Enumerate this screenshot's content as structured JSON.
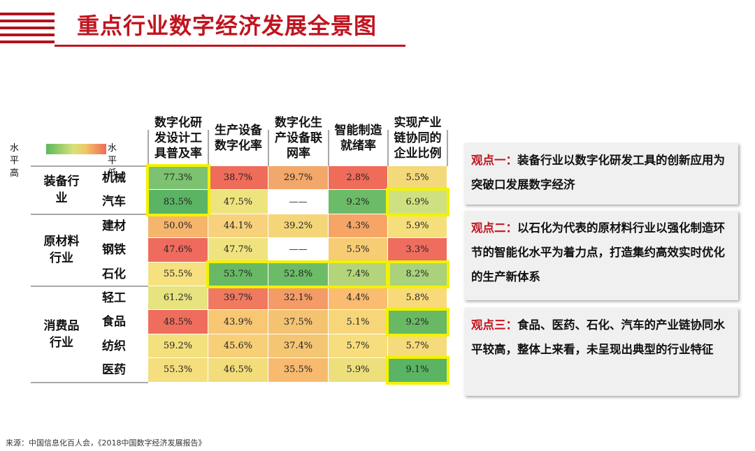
{
  "title": "重点行业数字经济发展全景图",
  "legend": {
    "high": "水平高",
    "low": "水平低",
    "colors": [
      "#5cb85c",
      "#d7e27a",
      "#f0c866",
      "#f06a5a"
    ]
  },
  "chart_data": {
    "type": "table",
    "columns": [
      [
        "数字化研",
        "发设计工",
        "具普及率"
      ],
      [
        "生产设备",
        "数字化率"
      ],
      [
        "数字化生",
        "产设备联",
        "网率"
      ],
      [
        "智能制造",
        "就绪率"
      ],
      [
        "实现产业",
        "链协同的",
        "企业比例"
      ]
    ],
    "groups": [
      {
        "label_lines": [
          "装备行",
          "业"
        ],
        "rows": [
          "机械",
          "汽车"
        ]
      },
      {
        "label_lines": [
          "原材料",
          "行业"
        ],
        "rows": [
          "建材",
          "钢铁",
          "石化"
        ]
      },
      {
        "label_lines": [
          "消费品",
          "行业"
        ],
        "rows": [
          "轻工",
          "食品",
          "纺织",
          "医药"
        ]
      }
    ],
    "rows": [
      {
        "name": "机械",
        "values": [
          "77.3%",
          "38.7%",
          "29.7%",
          "2.8%",
          "5.5%"
        ]
      },
      {
        "name": "汽车",
        "values": [
          "83.5%",
          "47.5%",
          "——",
          "9.2%",
          "6.9%"
        ]
      },
      {
        "name": "建材",
        "values": [
          "50.0%",
          "44.1%",
          "39.2%",
          "4.3%",
          "5.9%"
        ]
      },
      {
        "name": "钢铁",
        "values": [
          "47.6%",
          "47.7%",
          "——",
          "5.5%",
          "3.3%"
        ]
      },
      {
        "name": "石化",
        "values": [
          "55.5%",
          "53.7%",
          "52.8%",
          "7.4%",
          "8.2%"
        ]
      },
      {
        "name": "轻工",
        "values": [
          "61.2%",
          "39.7%",
          "32.1%",
          "4.4%",
          "5.8%"
        ]
      },
      {
        "name": "食品",
        "values": [
          "48.5%",
          "43.9%",
          "37.5%",
          "5.1%",
          "9.2%"
        ]
      },
      {
        "name": "纺织",
        "values": [
          "59.2%",
          "45.6%",
          "37.4%",
          "5.7%",
          "5.7%"
        ]
      },
      {
        "name": "医药",
        "values": [
          "55.3%",
          "46.5%",
          "35.5%",
          "5.9%",
          "9.1%"
        ]
      }
    ],
    "cell_colors": [
      [
        "#7cc271",
        "#ef6c5a",
        "#f2a86a",
        "#ef6c5a",
        "#f3d97a"
      ],
      [
        "#5ab463",
        "#eee47e",
        "#ffffff",
        "#6cbb68",
        "#cfe081"
      ],
      [
        "#f5b56d",
        "#f7d17b",
        "#f4d679",
        "#f6a567",
        "#f5df7d"
      ],
      [
        "#ef6b5d",
        "#f0e37f",
        "#ffffff",
        "#f6cc75",
        "#ee6d5f"
      ],
      [
        "#f6e07f",
        "#69b964",
        "#6cbb66",
        "#b3d47a",
        "#a9d27b"
      ],
      [
        "#e6e380",
        "#ef7a60",
        "#f49c68",
        "#f9bc70",
        "#f8da7b"
      ],
      [
        "#ef6d5d",
        "#f8c773",
        "#f3c372",
        "#f6d678",
        "#69b964"
      ],
      [
        "#f3e17e",
        "#f7cf77",
        "#f4c573",
        "#f7dd7d",
        "#f5db7b"
      ],
      [
        "#f5de7d",
        "#f3dc7a",
        "#f8ba6f",
        "#ecdf7c",
        "#5ab463"
      ]
    ],
    "highlighted_cells": [
      [
        0,
        0
      ],
      [
        1,
        0
      ],
      [
        1,
        4
      ],
      [
        4,
        1
      ],
      [
        4,
        2
      ],
      [
        4,
        3
      ],
      [
        4,
        4
      ],
      [
        6,
        4
      ],
      [
        8,
        4
      ]
    ]
  },
  "viewpoints": [
    {
      "title": "观点一：",
      "text": "装备行业以数字化研发工具的创新应用为突破口发展数字经济"
    },
    {
      "title": "观点二：",
      "text": "以石化为代表的原材料行业以强化制造环节的智能化水平为着力点，打造集约高效实时优化的生产新体系"
    },
    {
      "title": "观点三：",
      "text": "食品、医药、石化、汽车的产业链协同水平较高，整体上来看，未呈现出典型的行业特征"
    }
  ],
  "source": "来源：中国信息化百人会，《2018中国数字经济发展报告》"
}
